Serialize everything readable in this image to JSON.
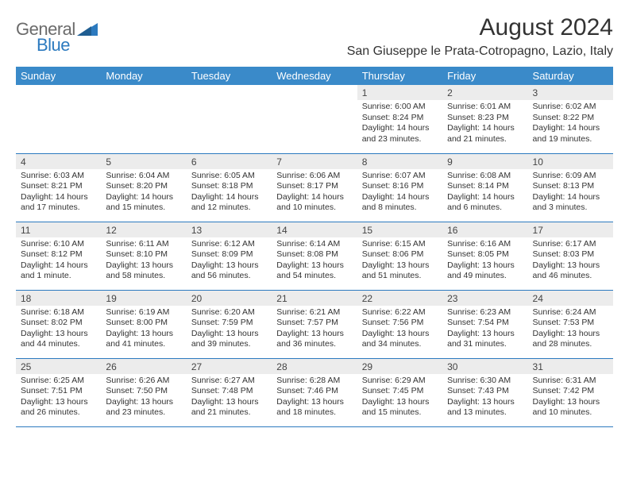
{
  "logo": {
    "word1": "General",
    "word2": "Blue"
  },
  "header": {
    "title": "August 2024",
    "location": "San Giuseppe le Prata-Cotropagno, Lazio, Italy"
  },
  "colors": {
    "header_bg": "#3a8ac9",
    "row_border": "#2c7abf",
    "daynum_bg": "#ececec",
    "logo_gray": "#6b6b6b",
    "logo_blue": "#2c7abf"
  },
  "day_headers": [
    "Sunday",
    "Monday",
    "Tuesday",
    "Wednesday",
    "Thursday",
    "Friday",
    "Saturday"
  ],
  "weeks": [
    [
      {
        "n": "",
        "sr": "",
        "ss": "",
        "dl": ""
      },
      {
        "n": "",
        "sr": "",
        "ss": "",
        "dl": ""
      },
      {
        "n": "",
        "sr": "",
        "ss": "",
        "dl": ""
      },
      {
        "n": "",
        "sr": "",
        "ss": "",
        "dl": ""
      },
      {
        "n": "1",
        "sr": "Sunrise: 6:00 AM",
        "ss": "Sunset: 8:24 PM",
        "dl": "Daylight: 14 hours and 23 minutes."
      },
      {
        "n": "2",
        "sr": "Sunrise: 6:01 AM",
        "ss": "Sunset: 8:23 PM",
        "dl": "Daylight: 14 hours and 21 minutes."
      },
      {
        "n": "3",
        "sr": "Sunrise: 6:02 AM",
        "ss": "Sunset: 8:22 PM",
        "dl": "Daylight: 14 hours and 19 minutes."
      }
    ],
    [
      {
        "n": "4",
        "sr": "Sunrise: 6:03 AM",
        "ss": "Sunset: 8:21 PM",
        "dl": "Daylight: 14 hours and 17 minutes."
      },
      {
        "n": "5",
        "sr": "Sunrise: 6:04 AM",
        "ss": "Sunset: 8:20 PM",
        "dl": "Daylight: 14 hours and 15 minutes."
      },
      {
        "n": "6",
        "sr": "Sunrise: 6:05 AM",
        "ss": "Sunset: 8:18 PM",
        "dl": "Daylight: 14 hours and 12 minutes."
      },
      {
        "n": "7",
        "sr": "Sunrise: 6:06 AM",
        "ss": "Sunset: 8:17 PM",
        "dl": "Daylight: 14 hours and 10 minutes."
      },
      {
        "n": "8",
        "sr": "Sunrise: 6:07 AM",
        "ss": "Sunset: 8:16 PM",
        "dl": "Daylight: 14 hours and 8 minutes."
      },
      {
        "n": "9",
        "sr": "Sunrise: 6:08 AM",
        "ss": "Sunset: 8:14 PM",
        "dl": "Daylight: 14 hours and 6 minutes."
      },
      {
        "n": "10",
        "sr": "Sunrise: 6:09 AM",
        "ss": "Sunset: 8:13 PM",
        "dl": "Daylight: 14 hours and 3 minutes."
      }
    ],
    [
      {
        "n": "11",
        "sr": "Sunrise: 6:10 AM",
        "ss": "Sunset: 8:12 PM",
        "dl": "Daylight: 14 hours and 1 minute."
      },
      {
        "n": "12",
        "sr": "Sunrise: 6:11 AM",
        "ss": "Sunset: 8:10 PM",
        "dl": "Daylight: 13 hours and 58 minutes."
      },
      {
        "n": "13",
        "sr": "Sunrise: 6:12 AM",
        "ss": "Sunset: 8:09 PM",
        "dl": "Daylight: 13 hours and 56 minutes."
      },
      {
        "n": "14",
        "sr": "Sunrise: 6:14 AM",
        "ss": "Sunset: 8:08 PM",
        "dl": "Daylight: 13 hours and 54 minutes."
      },
      {
        "n": "15",
        "sr": "Sunrise: 6:15 AM",
        "ss": "Sunset: 8:06 PM",
        "dl": "Daylight: 13 hours and 51 minutes."
      },
      {
        "n": "16",
        "sr": "Sunrise: 6:16 AM",
        "ss": "Sunset: 8:05 PM",
        "dl": "Daylight: 13 hours and 49 minutes."
      },
      {
        "n": "17",
        "sr": "Sunrise: 6:17 AM",
        "ss": "Sunset: 8:03 PM",
        "dl": "Daylight: 13 hours and 46 minutes."
      }
    ],
    [
      {
        "n": "18",
        "sr": "Sunrise: 6:18 AM",
        "ss": "Sunset: 8:02 PM",
        "dl": "Daylight: 13 hours and 44 minutes."
      },
      {
        "n": "19",
        "sr": "Sunrise: 6:19 AM",
        "ss": "Sunset: 8:00 PM",
        "dl": "Daylight: 13 hours and 41 minutes."
      },
      {
        "n": "20",
        "sr": "Sunrise: 6:20 AM",
        "ss": "Sunset: 7:59 PM",
        "dl": "Daylight: 13 hours and 39 minutes."
      },
      {
        "n": "21",
        "sr": "Sunrise: 6:21 AM",
        "ss": "Sunset: 7:57 PM",
        "dl": "Daylight: 13 hours and 36 minutes."
      },
      {
        "n": "22",
        "sr": "Sunrise: 6:22 AM",
        "ss": "Sunset: 7:56 PM",
        "dl": "Daylight: 13 hours and 34 minutes."
      },
      {
        "n": "23",
        "sr": "Sunrise: 6:23 AM",
        "ss": "Sunset: 7:54 PM",
        "dl": "Daylight: 13 hours and 31 minutes."
      },
      {
        "n": "24",
        "sr": "Sunrise: 6:24 AM",
        "ss": "Sunset: 7:53 PM",
        "dl": "Daylight: 13 hours and 28 minutes."
      }
    ],
    [
      {
        "n": "25",
        "sr": "Sunrise: 6:25 AM",
        "ss": "Sunset: 7:51 PM",
        "dl": "Daylight: 13 hours and 26 minutes."
      },
      {
        "n": "26",
        "sr": "Sunrise: 6:26 AM",
        "ss": "Sunset: 7:50 PM",
        "dl": "Daylight: 13 hours and 23 minutes."
      },
      {
        "n": "27",
        "sr": "Sunrise: 6:27 AM",
        "ss": "Sunset: 7:48 PM",
        "dl": "Daylight: 13 hours and 21 minutes."
      },
      {
        "n": "28",
        "sr": "Sunrise: 6:28 AM",
        "ss": "Sunset: 7:46 PM",
        "dl": "Daylight: 13 hours and 18 minutes."
      },
      {
        "n": "29",
        "sr": "Sunrise: 6:29 AM",
        "ss": "Sunset: 7:45 PM",
        "dl": "Daylight: 13 hours and 15 minutes."
      },
      {
        "n": "30",
        "sr": "Sunrise: 6:30 AM",
        "ss": "Sunset: 7:43 PM",
        "dl": "Daylight: 13 hours and 13 minutes."
      },
      {
        "n": "31",
        "sr": "Sunrise: 6:31 AM",
        "ss": "Sunset: 7:42 PM",
        "dl": "Daylight: 13 hours and 10 minutes."
      }
    ]
  ]
}
